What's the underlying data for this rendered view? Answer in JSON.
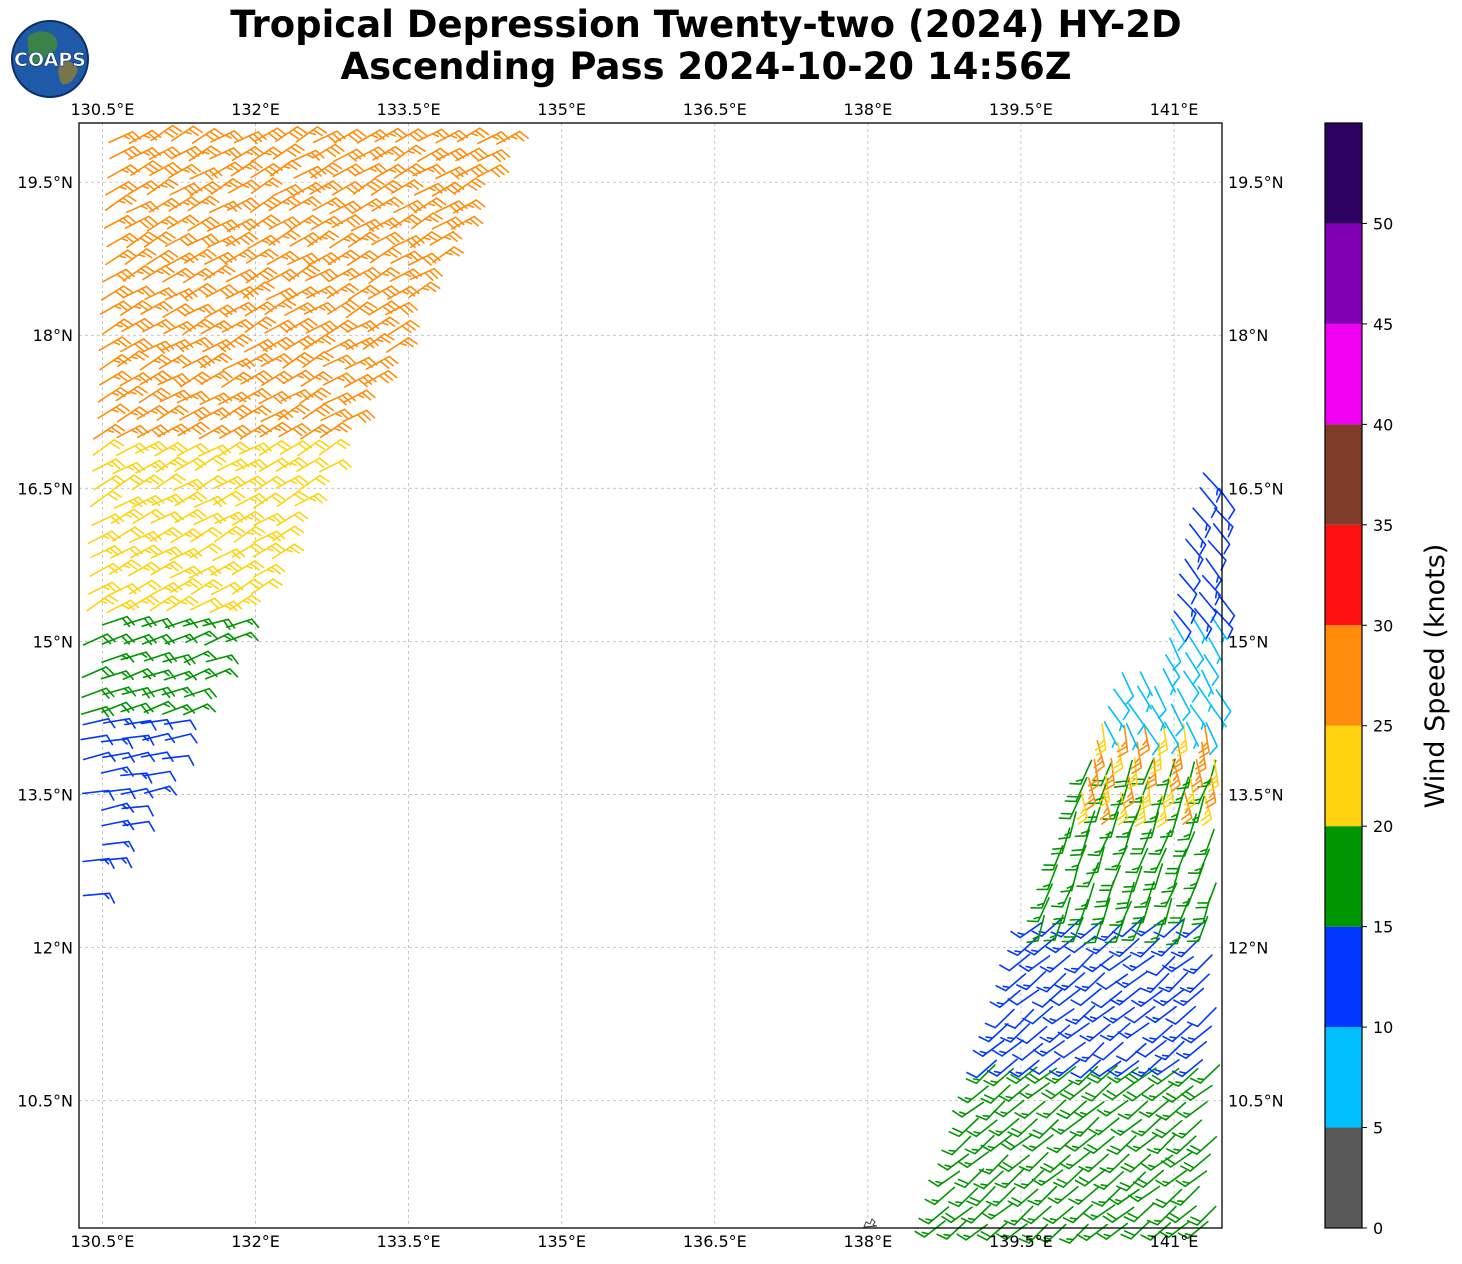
{
  "title": {
    "line1": "Tropical Depression Twenty-two (2024) HY-2D",
    "line2": "Ascending Pass 2024-10-20 14:56Z"
  },
  "logo": {
    "text": "COAPS",
    "icon": "globe-icon"
  },
  "map": {
    "lon_range": [
      130.27,
      141.47
    ],
    "lat_range": [
      9.25,
      20.08
    ],
    "lon_ticks": [
      "130.5°E",
      "132°E",
      "133.5°E",
      "135°E",
      "136.5°E",
      "138°E",
      "139.5°E",
      "141°E"
    ],
    "lat_ticks": [
      "19.5°N",
      "18°N",
      "16.5°N",
      "15°N",
      "13.5°N",
      "12°N",
      "10.5°N"
    ],
    "grid": true,
    "island_icon": "island-outline-icon"
  },
  "colorbar": {
    "title": "Wind Speed (knots)",
    "tick_labels": [
      "0",
      "5",
      "10",
      "15",
      "20",
      "25",
      "30",
      "35",
      "40",
      "45",
      "50"
    ],
    "bins": [
      {
        "from": 0,
        "to": 5,
        "color": "#595959"
      },
      {
        "from": 5,
        "to": 10,
        "color": "#00bfff"
      },
      {
        "from": 10,
        "to": 15,
        "color": "#0038ff"
      },
      {
        "from": 15,
        "to": 20,
        "color": "#009600"
      },
      {
        "from": 20,
        "to": 25,
        "color": "#ffd310"
      },
      {
        "from": 25,
        "to": 30,
        "color": "#ff8c0a"
      },
      {
        "from": 30,
        "to": 35,
        "color": "#ff1010"
      },
      {
        "from": 35,
        "to": 40,
        "color": "#7f3c28"
      },
      {
        "from": 40,
        "to": 45,
        "color": "#f000f0"
      },
      {
        "from": 45,
        "to": 50,
        "color": "#8200b4"
      },
      {
        "from": 50,
        "to": 55,
        "color": "#2c0060"
      }
    ]
  },
  "chart_data": {
    "type": "scatter",
    "description_of_marks": "wind barbs",
    "swaths": [
      {
        "name": "",
        "region": "northwest",
        "lon_range": [
          130.3,
          134.5
        ],
        "lat_range": [
          12.5,
          20.0
        ],
        "bands": [
          {
            "lat_from": 17.0,
            "lat_to": 20.0,
            "speed_kt": 27,
            "dir_deg": 60
          },
          {
            "lat_from": 15.3,
            "lat_to": 17.0,
            "speed_kt": 23,
            "dir_deg": 60
          },
          {
            "lat_from": 14.3,
            "lat_to": 15.3,
            "speed_kt": 17,
            "dir_deg": 70
          },
          {
            "lat_from": 12.5,
            "lat_to": 14.3,
            "speed_kt": 12,
            "dir_deg": 80
          }
        ]
      },
      {
        "name": "",
        "region": "southeast",
        "lon_range": [
          138.7,
          141.5
        ],
        "lat_range": [
          9.3,
          16.7
        ],
        "bands": [
          {
            "lat_from": 9.3,
            "lat_to": 10.9,
            "speed_kt": 17,
            "dir_deg": 230
          },
          {
            "lat_from": 10.9,
            "lat_to": 12.3,
            "speed_kt": 13,
            "dir_deg": 230
          },
          {
            "lat_from": 12.3,
            "lat_to": 13.9,
            "speed_kt": 17,
            "dir_deg": 200
          },
          {
            "lat_from": 13.5,
            "lat_to": 14.2,
            "speed_kt": 25,
            "dir_deg": 170
          },
          {
            "lat_from": 14.2,
            "lat_to": 15.3,
            "speed_kt": 8,
            "dir_deg": 150
          },
          {
            "lat_from": 15.3,
            "lat_to": 16.7,
            "speed_kt": 12,
            "dir_deg": 140
          }
        ]
      }
    ]
  }
}
